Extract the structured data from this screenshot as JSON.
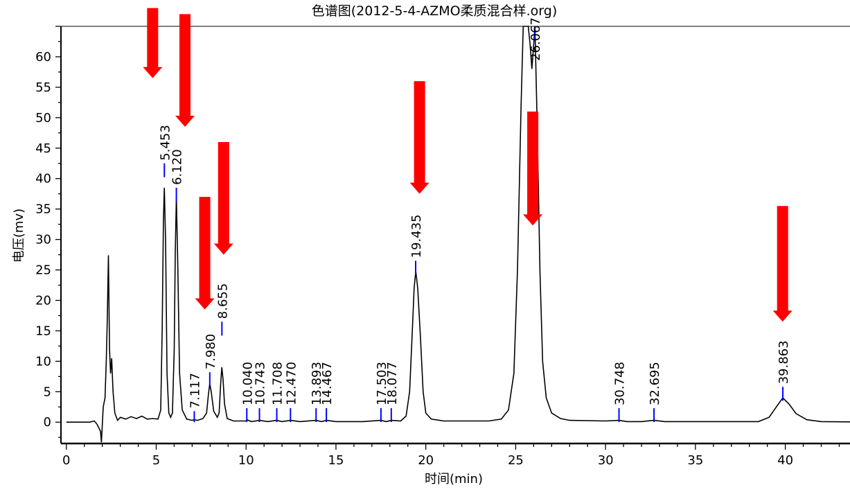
{
  "chart_data": {
    "type": "line",
    "title": "色谱图(2012-5-4-AZMO柔质混合样.org)",
    "xlabel": "时间(min)",
    "ylabel": "电压(mv)",
    "xlim": [
      -0.3,
      43.6
    ],
    "ylim": [
      -3.5,
      65
    ],
    "x_ticks": [
      0,
      5,
      10,
      15,
      20,
      25,
      30,
      35,
      40
    ],
    "y_ticks": [
      0,
      5,
      10,
      15,
      20,
      25,
      30,
      35,
      40,
      45,
      50,
      55,
      60
    ],
    "grid": false,
    "series": [
      {
        "color": "#000000",
        "points": [
          [
            0,
            0
          ],
          [
            1.3,
            0
          ],
          [
            1.55,
            0.2
          ],
          [
            1.7,
            -0.3
          ],
          [
            1.9,
            -1.5
          ],
          [
            1.95,
            -3.3
          ],
          [
            2.05,
            2.5
          ],
          [
            2.15,
            4
          ],
          [
            2.22,
            10
          ],
          [
            2.28,
            17
          ],
          [
            2.34,
            27.4
          ],
          [
            2.4,
            12
          ],
          [
            2.46,
            8
          ],
          [
            2.52,
            10.5
          ],
          [
            2.6,
            5
          ],
          [
            2.7,
            1.5
          ],
          [
            2.85,
            0.3
          ],
          [
            3.0,
            0.8
          ],
          [
            3.3,
            0.5
          ],
          [
            3.6,
            0.9
          ],
          [
            3.9,
            0.6
          ],
          [
            4.2,
            1.0
          ],
          [
            4.5,
            0.5
          ],
          [
            4.8,
            0.6
          ],
          [
            5.1,
            0.5
          ],
          [
            5.25,
            2
          ],
          [
            5.33,
            15
          ],
          [
            5.4,
            33
          ],
          [
            5.45,
            38.5
          ],
          [
            5.52,
            30
          ],
          [
            5.6,
            8
          ],
          [
            5.7,
            1.5
          ],
          [
            5.8,
            0.8
          ],
          [
            5.9,
            1.5
          ],
          [
            6.0,
            12
          ],
          [
            6.06,
            28
          ],
          [
            6.12,
            37
          ],
          [
            6.2,
            26
          ],
          [
            6.3,
            8
          ],
          [
            6.45,
            2
          ],
          [
            6.7,
            0.5
          ],
          [
            7.0,
            0.3
          ],
          [
            7.1,
            0.4
          ],
          [
            7.3,
            0.3
          ],
          [
            7.6,
            0.6
          ],
          [
            7.8,
            1.5
          ],
          [
            7.9,
            4.5
          ],
          [
            7.98,
            6.3
          ],
          [
            8.06,
            5
          ],
          [
            8.2,
            1.8
          ],
          [
            8.4,
            0.8
          ],
          [
            8.5,
            1.5
          ],
          [
            8.58,
            6
          ],
          [
            8.65,
            9
          ],
          [
            8.72,
            7
          ],
          [
            8.8,
            3
          ],
          [
            8.95,
            0.6
          ],
          [
            9.3,
            0.2
          ],
          [
            10.0,
            0.2
          ],
          [
            10.04,
            0.4
          ],
          [
            10.3,
            0.1
          ],
          [
            10.74,
            0.3
          ],
          [
            11.2,
            0.1
          ],
          [
            11.71,
            0.3
          ],
          [
            12.0,
            0.1
          ],
          [
            12.47,
            0.3
          ],
          [
            13.0,
            0.1
          ],
          [
            13.89,
            0.3
          ],
          [
            14.2,
            0.1
          ],
          [
            14.47,
            0.3
          ],
          [
            15.0,
            0.1
          ],
          [
            16.5,
            0.1
          ],
          [
            17.5,
            0.3
          ],
          [
            17.8,
            0.1
          ],
          [
            18.08,
            0.3
          ],
          [
            18.6,
            0.2
          ],
          [
            18.9,
            1
          ],
          [
            19.1,
            5
          ],
          [
            19.25,
            15
          ],
          [
            19.35,
            22
          ],
          [
            19.44,
            24.8
          ],
          [
            19.55,
            22
          ],
          [
            19.7,
            14
          ],
          [
            19.85,
            5
          ],
          [
            20.0,
            1.5
          ],
          [
            20.3,
            0.5
          ],
          [
            21.0,
            0.2
          ],
          [
            23.5,
            0.2
          ],
          [
            24.2,
            0.5
          ],
          [
            24.6,
            2
          ],
          [
            24.9,
            8
          ],
          [
            25.1,
            25
          ],
          [
            25.3,
            52
          ],
          [
            25.42,
            66
          ],
          [
            25.55,
            66
          ],
          [
            25.7,
            66
          ],
          [
            25.8,
            62
          ],
          [
            25.9,
            58
          ],
          [
            26.0,
            62
          ],
          [
            26.07,
            66
          ],
          [
            26.2,
            48
          ],
          [
            26.35,
            25
          ],
          [
            26.5,
            10
          ],
          [
            26.7,
            4
          ],
          [
            27.0,
            1.5
          ],
          [
            27.5,
            0.6
          ],
          [
            28.0,
            0.3
          ],
          [
            30.0,
            0.2
          ],
          [
            30.75,
            0.3
          ],
          [
            31.2,
            0.1
          ],
          [
            32.0,
            0.1
          ],
          [
            32.7,
            0.3
          ],
          [
            33.3,
            0.1
          ],
          [
            38.5,
            0.1
          ],
          [
            39.1,
            0.8
          ],
          [
            39.5,
            2.5
          ],
          [
            39.86,
            4
          ],
          [
            40.2,
            3
          ],
          [
            40.6,
            1.4
          ],
          [
            41.2,
            0.4
          ],
          [
            42.0,
            0.1
          ],
          [
            43.6,
            0.05
          ]
        ]
      }
    ],
    "peaks": [
      {
        "label": "5.453",
        "x": 5.453,
        "marker_y": 42.5
      },
      {
        "label": "6.120",
        "x": 6.12,
        "marker_y": 38.5
      },
      {
        "label": "7.117",
        "x": 7.117,
        "marker_y": 1.8
      },
      {
        "label": "7.980",
        "x": 7.98,
        "marker_y": 8.2
      },
      {
        "label": "8.655",
        "x": 8.655,
        "marker_y": 16.5
      },
      {
        "label": "10.040",
        "x": 10.04,
        "marker_y": 2.3
      },
      {
        "label": "10.743",
        "x": 10.743,
        "marker_y": 2.3
      },
      {
        "label": "11.708",
        "x": 11.708,
        "marker_y": 2.3
      },
      {
        "label": "12.470",
        "x": 12.47,
        "marker_y": 2.3
      },
      {
        "label": "13.893",
        "x": 13.893,
        "marker_y": 2.3
      },
      {
        "label": "14.467",
        "x": 14.467,
        "marker_y": 2.3
      },
      {
        "label": "17.503",
        "x": 17.503,
        "marker_y": 2.3
      },
      {
        "label": "18.077",
        "x": 18.077,
        "marker_y": 2.3
      },
      {
        "label": "19.435",
        "x": 19.435,
        "marker_y": 26.5
      },
      {
        "label": "26.067",
        "x": 26.067,
        "marker_y": 66
      },
      {
        "label": "30.748",
        "x": 30.748,
        "marker_y": 2.3
      },
      {
        "label": "32.695",
        "x": 32.695,
        "marker_y": 2.3
      },
      {
        "label": "39.863",
        "x": 39.863,
        "marker_y": 5.8
      }
    ],
    "arrows": [
      {
        "x": 4.8,
        "y_top": 68,
        "y_tip": 56.5
      },
      {
        "x": 6.6,
        "y_top": 67,
        "y_tip": 48.5
      },
      {
        "x": 7.7,
        "y_top": 37,
        "y_tip": 18.5
      },
      {
        "x": 8.75,
        "y_top": 46,
        "y_tip": 27.5
      },
      {
        "x": 19.65,
        "y_top": 56,
        "y_tip": 37.5
      },
      {
        "x": 25.95,
        "y_top": 51,
        "y_tip": 32.3
      },
      {
        "x": 39.85,
        "y_top": 35.5,
        "y_tip": 16.5
      }
    ],
    "colors": {
      "line": "#000000",
      "peak_marker": "#0000ff",
      "arrow": "#ff0000",
      "axis": "#000000"
    }
  }
}
